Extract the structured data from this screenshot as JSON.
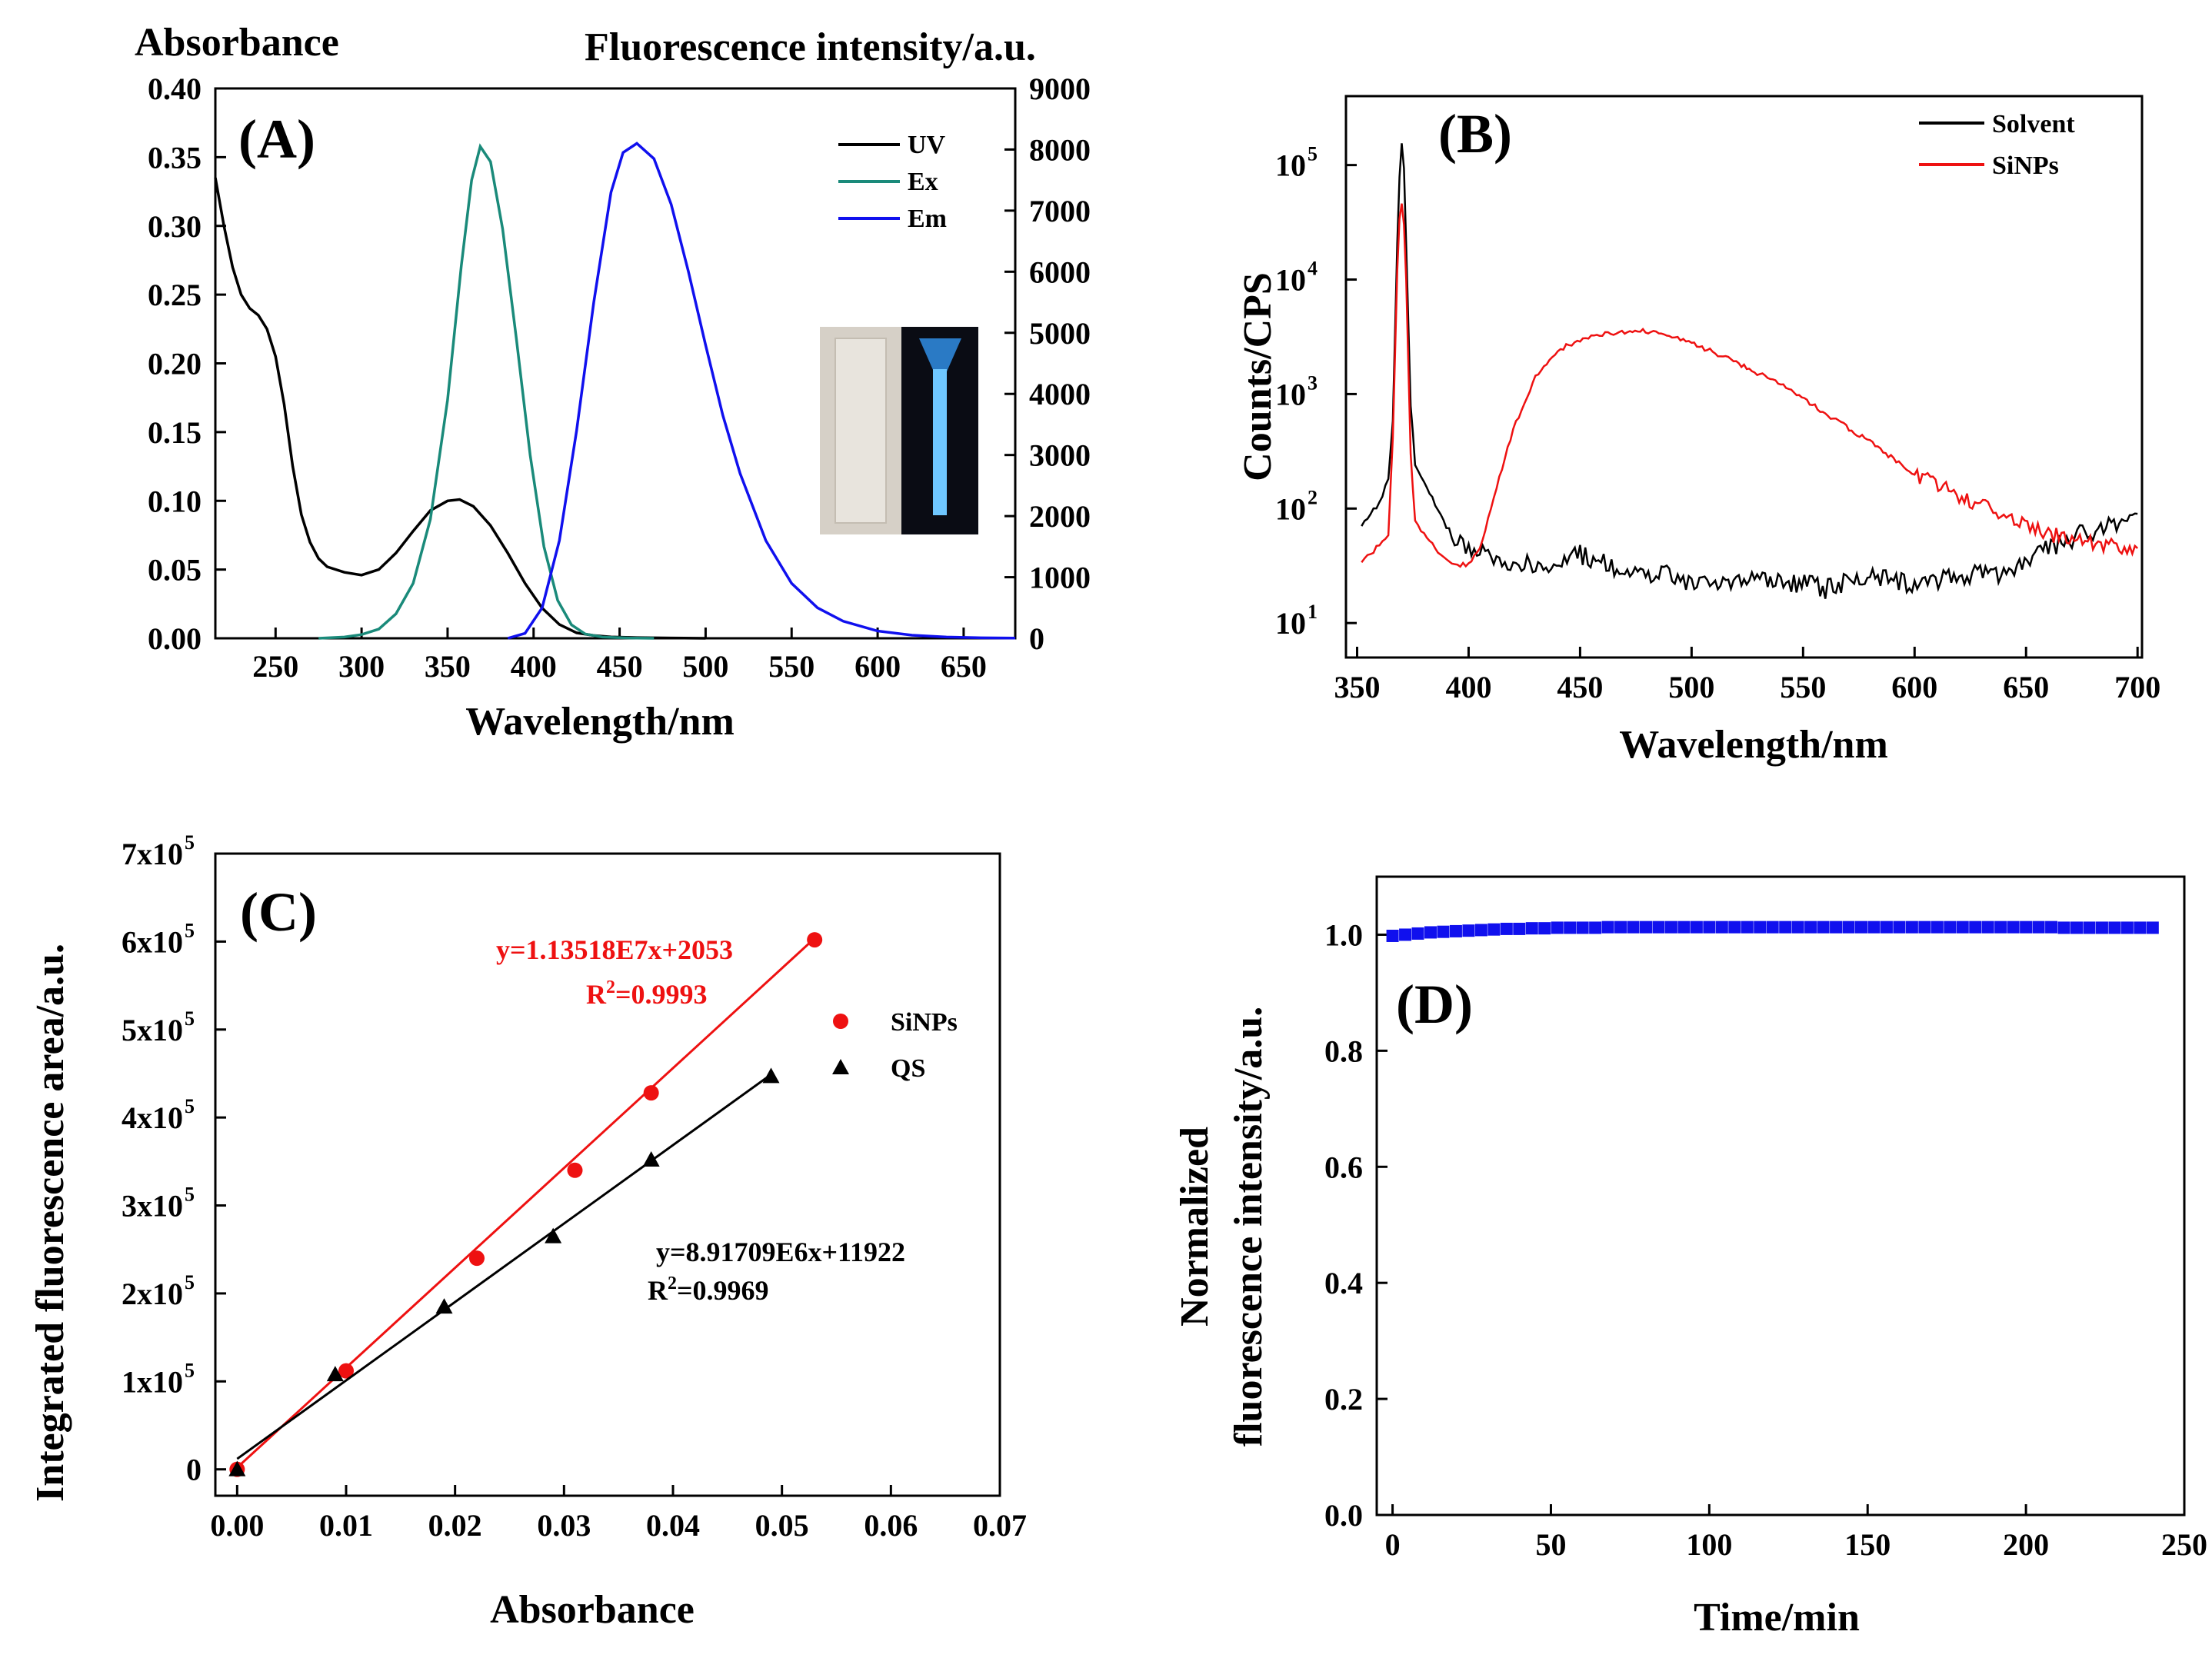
{
  "colors": {
    "uv": "#000000",
    "ex": "#1a8a7a",
    "em": "#1010ee",
    "solvent": "#000000",
    "sinps": "#ee1111",
    "qs": "#000000",
    "d_series": "#1010ee"
  },
  "panels": {
    "A": {
      "letter": "(A)",
      "left_axis_title": "Absorbance",
      "right_axis_title": "Fluorescence intensity/a.u.",
      "xlabel": "Wavelength/nm",
      "x_ticks": [
        "250",
        "300",
        "350",
        "400",
        "450",
        "500",
        "550",
        "600",
        "650"
      ],
      "y_left_ticks": [
        "0.00",
        "0.05",
        "0.10",
        "0.15",
        "0.20",
        "0.25",
        "0.30",
        "0.35",
        "0.40"
      ],
      "y_right_ticks": [
        "0",
        "1000",
        "2000",
        "3000",
        "4000",
        "5000",
        "6000",
        "7000",
        "8000",
        "9000"
      ],
      "legend": [
        "UV",
        "Ex",
        "Em"
      ]
    },
    "B": {
      "letter": "(B)",
      "xlabel": "Wavelength/nm",
      "ylabel": "Counts/CPS",
      "x_ticks": [
        "350",
        "400",
        "450",
        "500",
        "550",
        "600",
        "650",
        "700"
      ],
      "y_ticks_base": [
        "10",
        "10",
        "10",
        "10",
        "10"
      ],
      "y_ticks_exp": [
        "1",
        "2",
        "3",
        "4",
        "5"
      ],
      "legend": [
        "Solvent",
        "SiNPs"
      ]
    },
    "C": {
      "letter": "(C)",
      "xlabel": "Absorbance",
      "ylabel": "Integrated fluorescence area/a.u.",
      "x_ticks": [
        "0.00",
        "0.01",
        "0.02",
        "0.03",
        "0.04",
        "0.05",
        "0.06",
        "0.07"
      ],
      "y_ticks": [
        "0",
        "1x10",
        "2x10",
        "3x10",
        "4x10",
        "5x10",
        "6x10",
        "7x10"
      ],
      "y_ticks_exp": [
        "",
        "5",
        "5",
        "5",
        "5",
        "5",
        "5",
        "5"
      ],
      "legend": [
        "SiNPs",
        "QS"
      ],
      "eq_sinps": "y=1.13518E7x+2053",
      "r2_sinps_pre": "R",
      "r2_sinps_sup": "2",
      "r2_sinps_post": "=0.9993",
      "eq_qs": "y=8.91709E6x+11922",
      "r2_qs_pre": "R",
      "r2_qs_sup": "2",
      "r2_qs_post": "=0.9969"
    },
    "D": {
      "letter": "(D)",
      "xlabel": "Time/min",
      "ylabel_line1": "Normalized",
      "ylabel_line2": "fluorescence intensity/a.u.",
      "x_ticks": [
        "0",
        "50",
        "100",
        "150",
        "200",
        "250"
      ],
      "y_ticks": [
        "0.0",
        "0.2",
        "0.4",
        "0.6",
        "0.8",
        "1.0"
      ]
    }
  },
  "chart_data": [
    {
      "type": "line",
      "panel": "A",
      "xlabel": "Wavelength/nm",
      "ylabel": "Absorbance",
      "y2label": "Fluorescence intensity/a.u.",
      "xlim": [
        215,
        680
      ],
      "ylim": [
        0,
        0.4
      ],
      "y2lim": [
        0,
        9000
      ],
      "series": [
        {
          "name": "UV",
          "axis": "left",
          "x": [
            215,
            220,
            225,
            230,
            235,
            240,
            245,
            250,
            255,
            260,
            265,
            270,
            275,
            280,
            290,
            300,
            310,
            320,
            330,
            340,
            350,
            357,
            365,
            375,
            385,
            395,
            405,
            415,
            425,
            435,
            445,
            460,
            480,
            500
          ],
          "y": [
            0.335,
            0.3,
            0.27,
            0.25,
            0.24,
            0.235,
            0.225,
            0.205,
            0.17,
            0.125,
            0.09,
            0.07,
            0.058,
            0.052,
            0.048,
            0.046,
            0.05,
            0.062,
            0.078,
            0.093,
            0.1,
            0.101,
            0.096,
            0.082,
            0.062,
            0.04,
            0.022,
            0.01,
            0.004,
            0.002,
            0.001,
            0.0005,
            0.0002,
            0.0
          ]
        },
        {
          "name": "Ex",
          "axis": "right",
          "x": [
            275,
            290,
            300,
            310,
            320,
            330,
            340,
            350,
            358,
            364,
            369,
            375,
            382,
            390,
            398,
            406,
            414,
            422,
            430,
            440,
            455,
            470
          ],
          "y": [
            0,
            20,
            60,
            150,
            400,
            900,
            1950,
            3900,
            6100,
            7500,
            8050,
            7800,
            6700,
            4900,
            3000,
            1500,
            620,
            220,
            70,
            20,
            5,
            0
          ]
        },
        {
          "name": "Em",
          "axis": "right",
          "x": [
            385,
            395,
            405,
            415,
            425,
            435,
            445,
            452,
            460,
            470,
            480,
            490,
            500,
            510,
            520,
            535,
            550,
            565,
            580,
            600,
            620,
            640,
            660,
            680
          ],
          "y": [
            0,
            80,
            500,
            1600,
            3400,
            5500,
            7300,
            7950,
            8100,
            7850,
            7100,
            6000,
            4800,
            3650,
            2700,
            1600,
            900,
            500,
            280,
            120,
            50,
            20,
            8,
            3
          ]
        }
      ]
    },
    {
      "type": "line",
      "panel": "B",
      "xlabel": "Wavelength/nm",
      "ylabel": "Counts/CPS",
      "yscale": "log",
      "xlim": [
        345,
        702
      ],
      "ylim": [
        5,
        400000
      ],
      "series": [
        {
          "name": "Solvent",
          "x": [
            352,
            356,
            360,
            364,
            366,
            368,
            369,
            370,
            371,
            372,
            374,
            376,
            380,
            385,
            390,
            395,
            400,
            410,
            420,
            430,
            450,
            470,
            490,
            500,
            520,
            540,
            560,
            580,
            600,
            620,
            640,
            660,
            680,
            700
          ],
          "y": [
            70,
            90,
            110,
            180,
            600,
            20000,
            80000,
            150000,
            90000,
            20000,
            800,
            250,
            170,
            110,
            70,
            55,
            45,
            38,
            35,
            30,
            40,
            28,
            26,
            22,
            22,
            24,
            20,
            25,
            22,
            25,
            28,
            45,
            65,
            90
          ]
        },
        {
          "name": "SiNPs",
          "x": [
            352,
            356,
            360,
            364,
            366,
            368,
            369,
            370,
            371,
            372,
            374,
            376,
            380,
            385,
            390,
            395,
            400,
            405,
            410,
            420,
            430,
            440,
            450,
            460,
            470,
            477,
            490,
            500,
            520,
            540,
            560,
            580,
            600,
            620,
            640,
            660,
            680,
            700
          ],
          "y": [
            35,
            40,
            48,
            60,
            400,
            12000,
            35000,
            45000,
            30000,
            10000,
            300,
            80,
            60,
            45,
            35,
            32,
            33,
            45,
            100,
            500,
            1400,
            2400,
            3000,
            3300,
            3500,
            3600,
            3200,
            2800,
            1900,
            1200,
            680,
            380,
            200,
            130,
            85,
            60,
            50,
            45
          ]
        }
      ]
    },
    {
      "type": "scatter",
      "panel": "C",
      "xlabel": "Absorbance",
      "ylabel": "Integrated fluorescence area/a.u.",
      "xlim": [
        -0.002,
        0.07
      ],
      "ylim": [
        -30000,
        700000
      ],
      "series": [
        {
          "name": "SiNPs",
          "marker": "circle",
          "x": [
            0.0,
            0.01,
            0.022,
            0.031,
            0.038,
            0.053
          ],
          "y": [
            0,
            112000,
            240000,
            340000,
            428000,
            602000
          ],
          "fit_slope": 11351800,
          "fit_intercept": 2053,
          "fit_xrange": [
            0.0,
            0.053
          ]
        },
        {
          "name": "QS",
          "marker": "triangle",
          "x": [
            0.0,
            0.009,
            0.019,
            0.029,
            0.038,
            0.049
          ],
          "y": [
            0,
            108000,
            185000,
            265000,
            352000,
            447000
          ],
          "fit_slope": 8917090,
          "fit_intercept": 11922,
          "fit_xrange": [
            0.0,
            0.049
          ]
        }
      ]
    },
    {
      "type": "scatter",
      "panel": "D",
      "xlabel": "Time/min",
      "ylabel": "Normalized fluorescence intensity/a.u.",
      "xlim": [
        -5,
        250
      ],
      "ylim": [
        0,
        1.1
      ],
      "series": [
        {
          "name": "intensity",
          "marker": "square",
          "x": [
            0,
            4,
            8,
            12,
            16,
            20,
            24,
            28,
            32,
            36,
            40,
            44,
            48,
            52,
            56,
            60,
            64,
            68,
            72,
            76,
            80,
            84,
            88,
            92,
            96,
            100,
            104,
            108,
            112,
            116,
            120,
            124,
            128,
            132,
            136,
            140,
            144,
            148,
            152,
            156,
            160,
            164,
            168,
            172,
            176,
            180,
            184,
            188,
            192,
            196,
            200,
            204,
            208,
            212,
            216,
            220,
            224,
            228,
            232,
            236,
            240
          ],
          "y": [
            0.998,
            1.0,
            1.002,
            1.004,
            1.005,
            1.006,
            1.007,
            1.008,
            1.009,
            1.01,
            1.01,
            1.011,
            1.011,
            1.012,
            1.012,
            1.012,
            1.012,
            1.013,
            1.013,
            1.013,
            1.013,
            1.013,
            1.013,
            1.013,
            1.013,
            1.013,
            1.013,
            1.013,
            1.013,
            1.013,
            1.013,
            1.013,
            1.013,
            1.013,
            1.013,
            1.013,
            1.013,
            1.013,
            1.013,
            1.013,
            1.013,
            1.013,
            1.013,
            1.013,
            1.013,
            1.013,
            1.013,
            1.013,
            1.013,
            1.013,
            1.013,
            1.013,
            1.013,
            1.012,
            1.012,
            1.012,
            1.012,
            1.012,
            1.012,
            1.012,
            1.012
          ]
        }
      ]
    }
  ]
}
